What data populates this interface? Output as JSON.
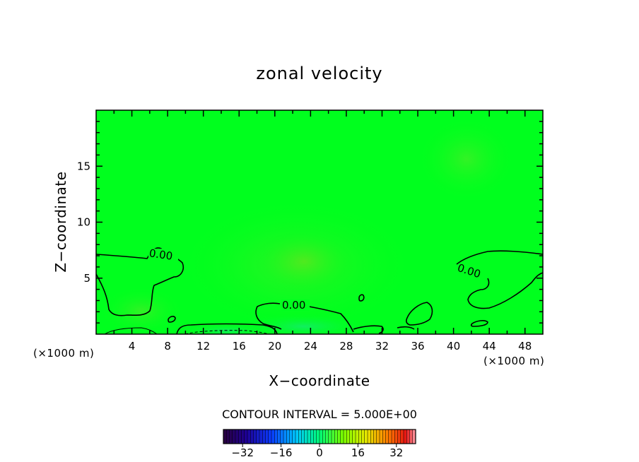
{
  "chart_data": {
    "type": "heatmap",
    "title": "zonal velocity",
    "xlabel": "X−coordinate",
    "ylabel": "Z−coordinate",
    "x_unit": "(×1000 m)",
    "z_unit": "(×1000 m)",
    "xlim": [
      0,
      50
    ],
    "ylim": [
      0,
      20
    ],
    "x_ticks": [
      4,
      8,
      12,
      16,
      20,
      24,
      28,
      32,
      36,
      40,
      44,
      48
    ],
    "y_ticks": [
      5,
      10,
      15
    ],
    "contour_levels_labeled": [
      "0.00",
      "0.00",
      "0.00"
    ],
    "contour_interval_text": "CONTOUR INTERVAL = 5.000E+00",
    "colorbar": {
      "min": -40,
      "max": 40,
      "ticks": [
        -32,
        -16,
        0,
        16,
        32
      ]
    },
    "colors": {
      "background_field": "#00ff1e",
      "positive_tint": "#3ff01e",
      "negative_tint": "#14ee60",
      "contour": "#000000"
    }
  }
}
